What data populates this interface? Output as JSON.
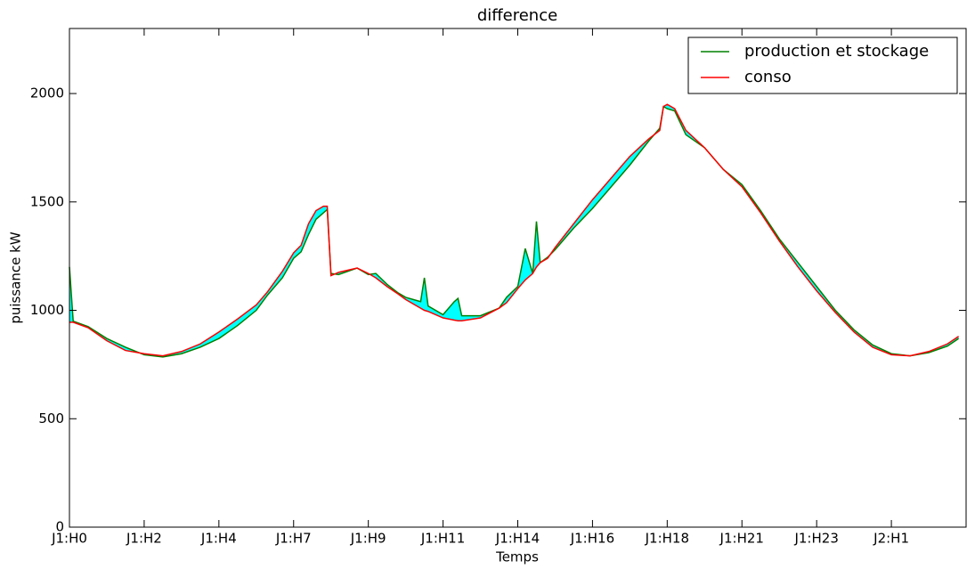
{
  "chart_data": {
    "type": "line",
    "title": "difference",
    "x_label": "Temps",
    "y_label": "puissance kW",
    "x": [
      0,
      1,
      5,
      10,
      15,
      20,
      25,
      30,
      35,
      40,
      45,
      50,
      53,
      57,
      60,
      62,
      64,
      66,
      68,
      69,
      70,
      72,
      77,
      80,
      82,
      85,
      88,
      90,
      94,
      95,
      96,
      100,
      103,
      104,
      105,
      110,
      115,
      117,
      120,
      122,
      124,
      125,
      126,
      128,
      130,
      135,
      140,
      145,
      150,
      155,
      158,
      159,
      160,
      162,
      165,
      170,
      175,
      180,
      185,
      190,
      195,
      200,
      205,
      210,
      215,
      220,
      225,
      230,
      235,
      238
    ],
    "series": [
      {
        "name": "production et stockage",
        "color": "#008000",
        "values": [
          1200,
          950,
          925,
          870,
          830,
          795,
          785,
          800,
          830,
          870,
          930,
          1000,
          1070,
          1150,
          1240,
          1270,
          1350,
          1420,
          1450,
          1465,
          1170,
          1165,
          1195,
          1165,
          1170,
          1120,
          1080,
          1060,
          1040,
          1150,
          1020,
          980,
          1040,
          1055,
          975,
          975,
          1010,
          1060,
          1110,
          1285,
          1170,
          1410,
          1220,
          1245,
          1280,
          1380,
          1470,
          1570,
          1670,
          1780,
          1840,
          1940,
          1930,
          1920,
          1810,
          1750,
          1650,
          1580,
          1460,
          1330,
          1220,
          1110,
          1000,
          910,
          840,
          800,
          790,
          805,
          835,
          870
        ]
      },
      {
        "name": "conso",
        "color": "#ff0000",
        "values": [
          945,
          945,
          920,
          860,
          815,
          800,
          790,
          810,
          845,
          900,
          960,
          1025,
          1085,
          1180,
          1265,
          1300,
          1400,
          1460,
          1480,
          1480,
          1160,
          1175,
          1195,
          1170,
          1150,
          1110,
          1075,
          1050,
          1010,
          1000,
          995,
          965,
          955,
          952,
          952,
          965,
          1010,
          1035,
          1100,
          1140,
          1170,
          1200,
          1220,
          1240,
          1290,
          1400,
          1510,
          1610,
          1710,
          1790,
          1830,
          1940,
          1950,
          1930,
          1830,
          1750,
          1650,
          1570,
          1450,
          1320,
          1200,
          1090,
          990,
          900,
          830,
          795,
          790,
          810,
          845,
          880
        ]
      }
    ],
    "fill_color": "#00ffff",
    "xlim": [
      0,
      240
    ],
    "xticks": [
      {
        "value": 0,
        "label": "J1:H0"
      },
      {
        "value": 20,
        "label": "J1:H2"
      },
      {
        "value": 40,
        "label": "J1:H4"
      },
      {
        "value": 60,
        "label": "J1:H7"
      },
      {
        "value": 80,
        "label": "J1:H9"
      },
      {
        "value": 100,
        "label": "J1:H11"
      },
      {
        "value": 120,
        "label": "J1:H14"
      },
      {
        "value": 140,
        "label": "J1:H16"
      },
      {
        "value": 160,
        "label": "J1:H18"
      },
      {
        "value": 180,
        "label": "J1:H21"
      },
      {
        "value": 200,
        "label": "J1:H23"
      },
      {
        "value": 220,
        "label": "J2:H1"
      }
    ],
    "ylim": [
      0,
      2300
    ],
    "yticks": [
      0,
      500,
      1000,
      1500,
      2000
    ],
    "legend": "upper right",
    "grid": false
  }
}
